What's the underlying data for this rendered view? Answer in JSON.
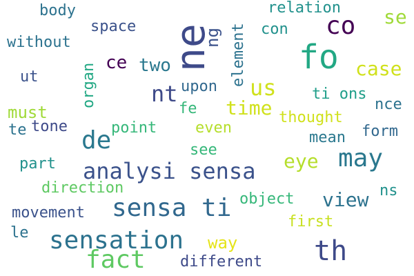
{
  "words": [
    {
      "text": "body",
      "color": "#2c728e",
      "rotated": false
    },
    {
      "text": "element",
      "color": "#2c728e",
      "rotated": true
    },
    {
      "text": "relation",
      "color": "#21918c",
      "rotated": false
    },
    {
      "text": "se",
      "color": "#a0da39",
      "rotated": false
    },
    {
      "text": "space",
      "color": "#3b528b",
      "rotated": false
    },
    {
      "text": "ne",
      "color": "#3e4a89",
      "rotated": true
    },
    {
      "text": "ng",
      "color": "#3b528b",
      "rotated": true
    },
    {
      "text": "con",
      "color": "#21918c",
      "rotated": false
    },
    {
      "text": "co",
      "color": "#440154",
      "rotated": false
    },
    {
      "text": "without",
      "color": "#2c728e",
      "rotated": false
    },
    {
      "text": "fo",
      "color": "#22a884",
      "rotated": false
    },
    {
      "text": "ce",
      "color": "#440154",
      "rotated": false
    },
    {
      "text": "two",
      "color": "#2a788e",
      "rotated": false
    },
    {
      "text": "case",
      "color": "#d0e11c",
      "rotated": false
    },
    {
      "text": "ut",
      "color": "#3b528b",
      "rotated": false
    },
    {
      "text": "organ",
      "color": "#22a884",
      "rotated": true
    },
    {
      "text": "us",
      "color": "#d0e11c",
      "rotated": false
    },
    {
      "text": "upon",
      "color": "#31688e",
      "rotated": false
    },
    {
      "text": "nt",
      "color": "#3e4a89",
      "rotated": false
    },
    {
      "text": "ti ons",
      "color": "#1f9e89",
      "rotated": false
    },
    {
      "text": "must",
      "color": "#a0da39",
      "rotated": false
    },
    {
      "text": "fe",
      "color": "#35b779",
      "rotated": false
    },
    {
      "text": "time",
      "color": "#d0e11c",
      "rotated": false
    },
    {
      "text": "nce",
      "color": "#2c728e",
      "rotated": false
    },
    {
      "text": "thought",
      "color": "#d0e11c",
      "rotated": false
    },
    {
      "text": "te",
      "color": "#2c728e",
      "rotated": false
    },
    {
      "text": "tone",
      "color": "#3e4a89",
      "rotated": false
    },
    {
      "text": "point",
      "color": "#35b779",
      "rotated": false
    },
    {
      "text": "even",
      "color": "#b5de2b",
      "rotated": false
    },
    {
      "text": "form",
      "color": "#31688e",
      "rotated": false
    },
    {
      "text": "de",
      "color": "#2a788e",
      "rotated": false
    },
    {
      "text": "mean",
      "color": "#2a788e",
      "rotated": false
    },
    {
      "text": "see",
      "color": "#35b779",
      "rotated": false
    },
    {
      "text": "may",
      "color": "#2a788e",
      "rotated": false
    },
    {
      "text": "part",
      "color": "#21918c",
      "rotated": false
    },
    {
      "text": "eye",
      "color": "#b5de2b",
      "rotated": false
    },
    {
      "text": "analysi sensa",
      "color": "#3b528b",
      "rotated": false
    },
    {
      "text": "direction",
      "color": "#5ec962",
      "rotated": false
    },
    {
      "text": "ns",
      "color": "#21918c",
      "rotated": false
    },
    {
      "text": "object",
      "color": "#35b779",
      "rotated": false
    },
    {
      "text": "view",
      "color": "#2c728e",
      "rotated": false
    },
    {
      "text": "movement",
      "color": "#3b528b",
      "rotated": false
    },
    {
      "text": "sensa ti",
      "color": "#31688e",
      "rotated": false
    },
    {
      "text": "first",
      "color": "#c8e020",
      "rotated": false
    },
    {
      "text": "le",
      "color": "#2c728e",
      "rotated": false
    },
    {
      "text": "sensation",
      "color": "#2c728e",
      "rotated": false
    },
    {
      "text": "way",
      "color": "#e5e419",
      "rotated": false
    },
    {
      "text": "th",
      "color": "#3e4a89",
      "rotated": false
    },
    {
      "text": "fact",
      "color": "#5ec962",
      "rotated": false
    },
    {
      "text": "different",
      "color": "#3e4a89",
      "rotated": false
    }
  ]
}
